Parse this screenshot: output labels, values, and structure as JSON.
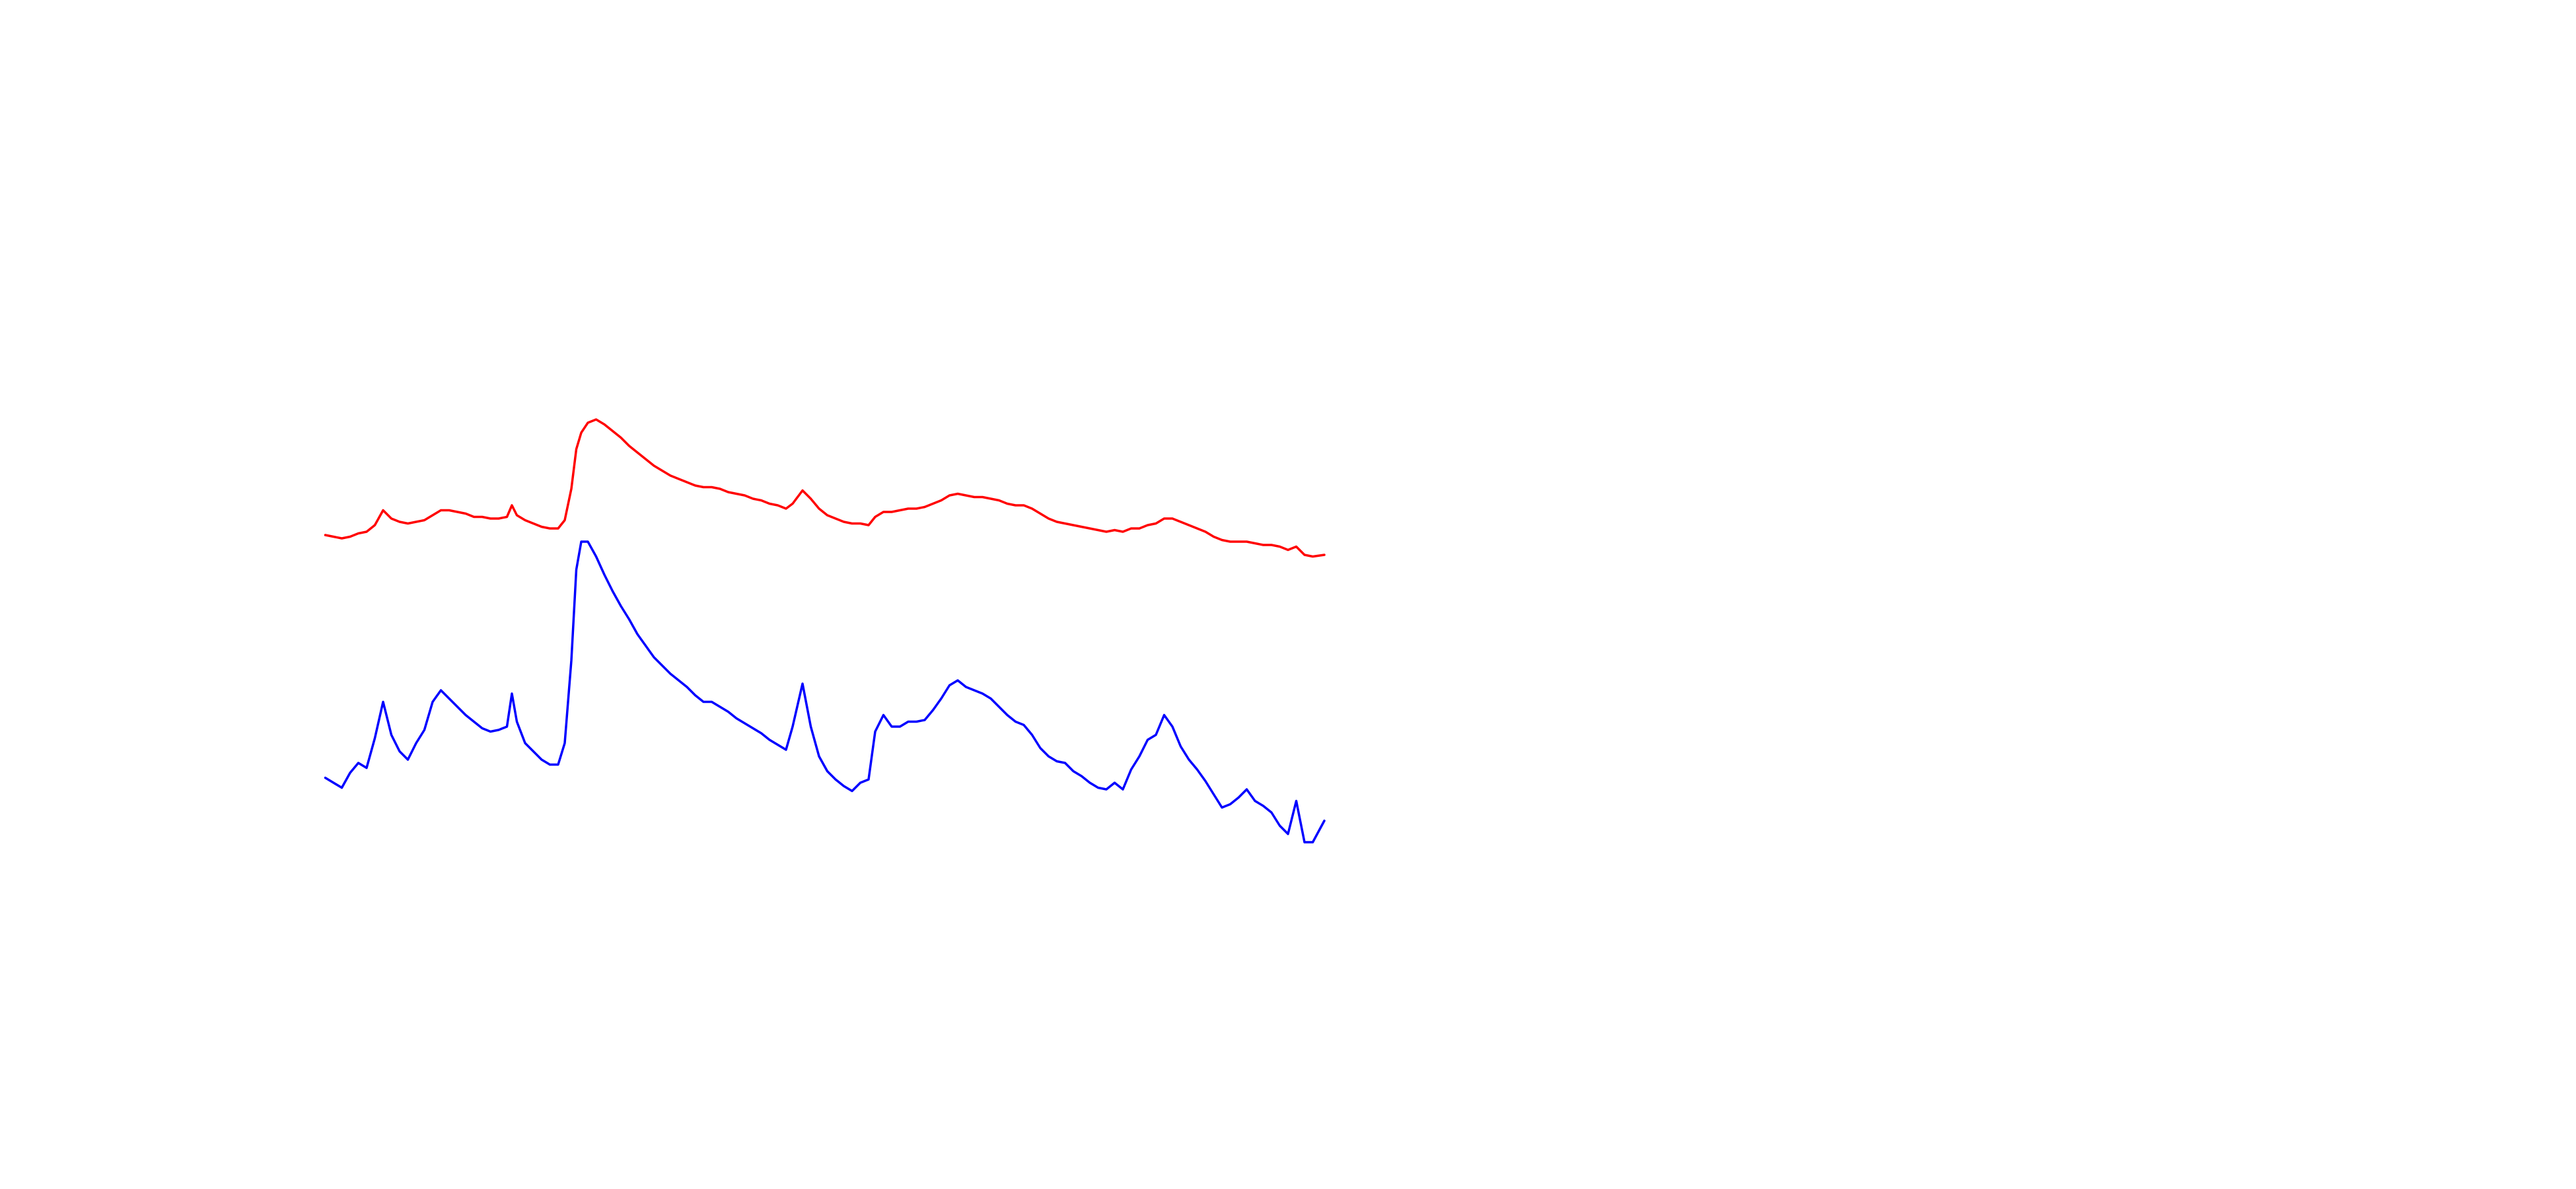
{
  "chart_data": {
    "type": "line",
    "x": [
      0,
      10,
      15,
      20,
      25,
      30,
      35,
      40,
      45,
      50,
      55,
      60,
      65,
      70,
      75,
      80,
      85,
      90,
      95,
      100,
      105,
      110,
      113,
      116,
      121,
      126,
      131,
      136,
      141,
      145,
      149,
      152,
      155,
      159,
      164,
      169,
      174,
      179,
      184,
      189,
      194,
      199,
      204,
      209,
      214,
      219,
      224,
      229,
      234,
      239,
      244,
      249,
      254,
      259,
      264,
      269,
      274,
      279,
      283,
      289,
      294,
      299,
      304,
      309,
      314,
      319,
      324,
      329,
      333,
      338,
      343,
      348,
      353,
      358,
      363,
      368,
      373,
      378,
      383,
      388,
      393,
      398,
      403,
      408,
      413,
      418,
      423,
      428,
      433,
      438,
      443,
      448,
      453,
      458,
      463,
      468,
      473,
      478,
      483,
      488,
      493,
      498,
      503,
      508,
      513,
      518,
      523,
      528,
      533,
      538,
      543,
      548,
      553,
      558,
      563,
      568,
      573,
      578,
      583,
      588,
      593,
      598,
      605
    ],
    "xlim": [
      0,
      605
    ],
    "ylim": [
      0,
      720
    ],
    "series": [
      {
        "color": "#ff0000",
        "values": [
          396,
          394,
          395,
          397,
          398,
          402,
          411,
          406,
          404,
          403,
          404,
          405,
          408,
          411,
          411,
          410,
          409,
          407,
          407,
          406,
          406,
          407,
          414,
          408,
          405,
          403,
          401,
          400,
          400,
          405,
          424,
          448,
          458,
          464,
          466,
          463,
          459,
          455,
          450,
          446,
          442,
          438,
          435,
          432,
          430,
          428,
          426,
          425,
          425,
          424,
          422,
          421,
          420,
          418,
          417,
          415,
          414,
          412,
          415,
          423,
          418,
          412,
          408,
          406,
          404,
          403,
          403,
          402,
          407,
          410,
          410,
          411,
          412,
          412,
          413,
          415,
          417,
          420,
          421,
          420,
          419,
          419,
          418,
          417,
          415,
          414,
          414,
          412,
          409,
          406,
          404,
          403,
          402,
          401,
          400,
          399,
          398,
          399,
          398,
          400,
          400,
          402,
          403,
          406,
          406,
          404,
          402,
          400,
          398,
          395,
          393,
          392,
          392,
          392,
          391,
          390,
          390,
          389,
          387,
          389,
          384,
          383,
          384
        ]
      },
      {
        "color": "#0000ff",
        "values": [
          249,
          243,
          252,
          258,
          255,
          273,
          295,
          275,
          265,
          260,
          270,
          278,
          295,
          302,
          297,
          292,
          287,
          283,
          279,
          277,
          278,
          280,
          300,
          283,
          270,
          265,
          260,
          257,
          257,
          270,
          320,
          375,
          392,
          392,
          383,
          372,
          362,
          353,
          345,
          336,
          329,
          322,
          317,
          312,
          308,
          304,
          299,
          295,
          295,
          292,
          289,
          285,
          282,
          279,
          276,
          272,
          269,
          266,
          280,
          306,
          280,
          262,
          253,
          248,
          244,
          241,
          246,
          248,
          277,
          287,
          280,
          280,
          283,
          283,
          284,
          290,
          297,
          305,
          308,
          304,
          302,
          300,
          297,
          292,
          287,
          283,
          281,
          275,
          267,
          262,
          259,
          258,
          253,
          250,
          246,
          243,
          242,
          246,
          242,
          254,
          262,
          272,
          275,
          287,
          280,
          268,
          260,
          254,
          247,
          239,
          231,
          233,
          237,
          242,
          235,
          232,
          228,
          220,
          215,
          235,
          210,
          210,
          223
        ]
      }
    ]
  }
}
